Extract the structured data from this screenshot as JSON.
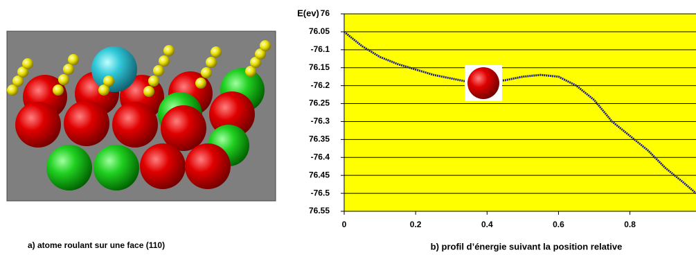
{
  "chart_data": {
    "type": "line",
    "ylabel": "E(ev)",
    "xlabel": "b) profil d’énergie suivant la position relative",
    "image_caption": "a) atome roulant sur une face (110)",
    "x": [
      0,
      0.05,
      0.1,
      0.15,
      0.2,
      0.25,
      0.3,
      0.35,
      0.4,
      0.45,
      0.5,
      0.55,
      0.6,
      0.65,
      0.7,
      0.75,
      0.8,
      0.85,
      0.9,
      0.95,
      0.985
    ],
    "series": [
      {
        "color": "#1c1c82",
        "values": [
          -76.05,
          -76.09,
          -76.12,
          -76.14,
          -76.155,
          -76.17,
          -76.18,
          -76.19,
          -76.19,
          -76.185,
          -76.175,
          -76.17,
          -76.175,
          -76.2,
          -76.24,
          -76.3,
          -76.34,
          -76.38,
          -76.43,
          -76.47,
          -76.5
        ]
      }
    ],
    "xlim": [
      0,
      0.985
    ],
    "ylim": [
      -76.55,
      -76
    ],
    "xticks": [
      0,
      0.2,
      0.4,
      0.6,
      0.8
    ],
    "yticks": [
      {
        "value": -76,
        "label": "76"
      },
      {
        "value": -76.05,
        "label": "76.05"
      },
      -76.1,
      {
        "value": -76.15,
        "label": "76.15"
      },
      -76.2,
      {
        "value": -76.25,
        "label": "76.25"
      },
      -76.3,
      {
        "value": -76.35,
        "label": "76.35"
      },
      -76.4,
      {
        "value": -76.45,
        "label": "76.45"
      },
      -76.5,
      {
        "value": -76.55,
        "label": "76.55"
      }
    ],
    "grid": true,
    "background": "#ffff00"
  }
}
